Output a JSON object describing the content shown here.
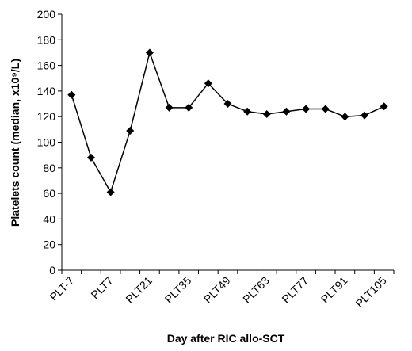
{
  "chart_data": {
    "type": "line",
    "y_label": "Platelets count (median, x10⁹/L)",
    "x_label": "Day after RIC allo-SCT",
    "categories": [
      "PLT-7",
      null,
      "PLT7",
      null,
      "PLT21",
      null,
      "PLT35",
      null,
      "PLT49",
      null,
      "PLT63",
      null,
      "PLT77",
      null,
      "PLT91",
      null,
      "PLT105"
    ],
    "values": [
      137,
      88,
      61,
      109,
      170,
      127,
      127,
      146,
      130,
      124,
      122,
      124,
      126,
      126,
      120,
      121,
      128
    ],
    "color": "#000000",
    "ylim": [
      0,
      200
    ],
    "yticks": [
      0,
      20,
      40,
      60,
      80,
      100,
      120,
      140,
      160,
      180,
      200
    ]
  }
}
